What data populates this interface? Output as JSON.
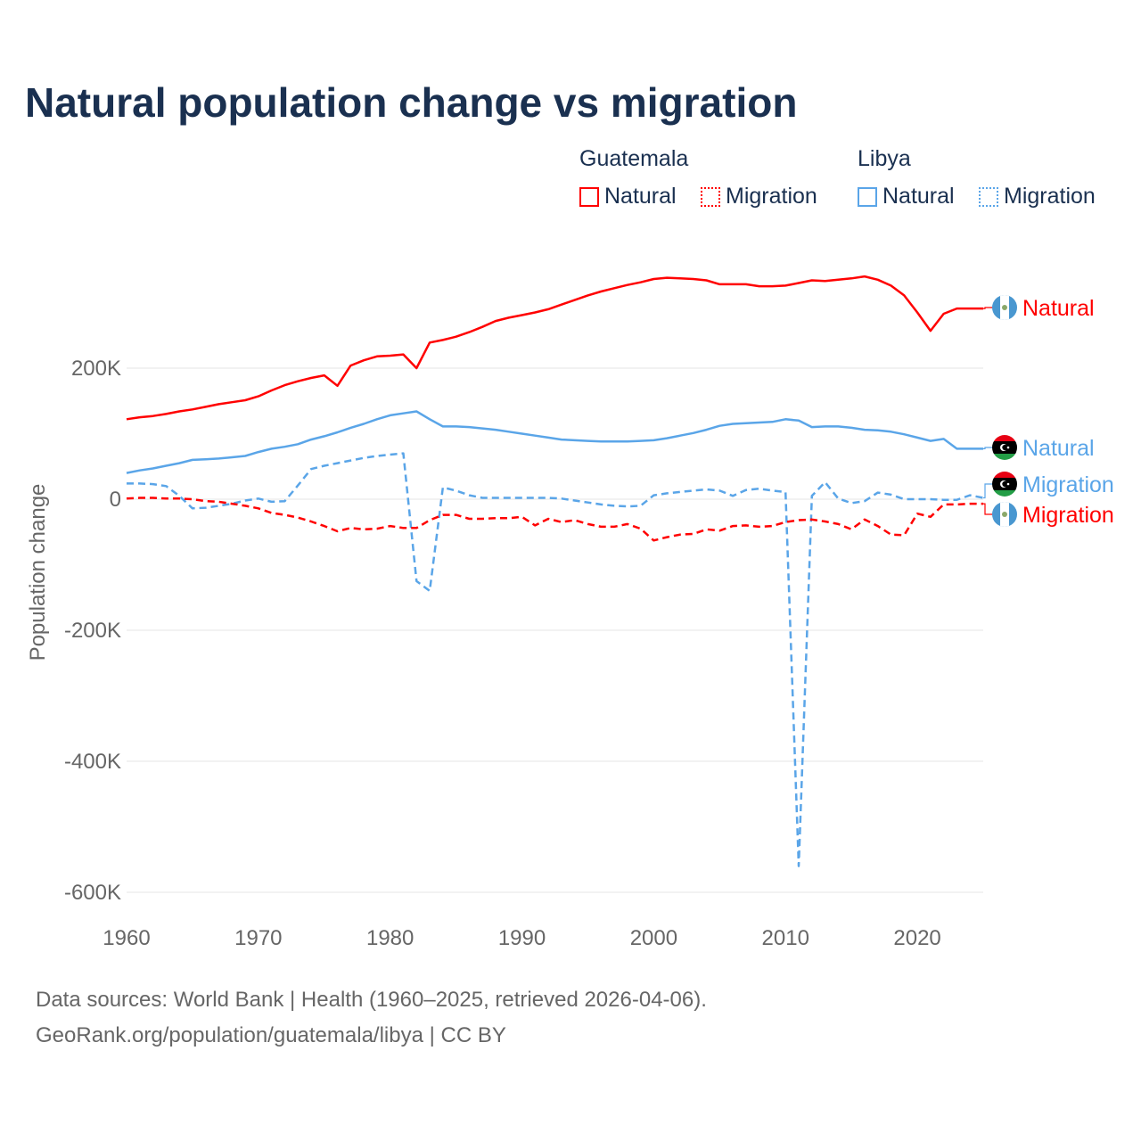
{
  "chart_data": {
    "type": "line",
    "title": "Natural population change vs migration",
    "xlabel": "",
    "ylabel": "Population change",
    "xlim": [
      1960,
      2025
    ],
    "ylim": [
      -600000,
      400000
    ],
    "yticks": [
      {
        "v": 200000,
        "label": "200K"
      },
      {
        "v": 0,
        "label": "0"
      },
      {
        "v": -200000,
        "label": "-200K"
      },
      {
        "v": -400000,
        "label": "-400K"
      },
      {
        "v": -600000,
        "label": "-600K"
      }
    ],
    "xticks": [
      1960,
      1970,
      1980,
      1990,
      2000,
      2010,
      2020
    ],
    "grid": true,
    "legend_position": "top-right",
    "legend_groups": [
      {
        "country": "Guatemala",
        "items": [
          "Natural",
          "Migration"
        ],
        "color": "#ff0000"
      },
      {
        "country": "Libya",
        "items": [
          "Natural",
          "Migration"
        ],
        "color": "#5aa5e8"
      }
    ],
    "start_year": 1960,
    "series": [
      {
        "name": "Guatemala Natural",
        "label": "Natural",
        "country": "Guatemala",
        "color": "#ff0000",
        "dash": false,
        "unit": "K",
        "values": [
          122,
          125,
          127,
          130,
          134,
          137,
          141,
          145,
          148,
          151,
          157,
          166,
          174,
          180,
          185,
          189,
          173,
          204,
          212,
          218,
          219,
          221,
          200,
          239,
          243,
          248,
          255,
          263,
          272,
          277,
          281,
          285,
          290,
          297,
          304,
          311,
          317,
          322,
          327,
          331,
          336,
          338,
          337,
          336,
          334,
          328,
          328,
          328,
          325,
          325,
          326,
          330,
          334,
          333,
          335,
          337,
          340,
          335,
          326,
          311,
          285,
          257,
          283,
          291,
          291,
          291
        ]
      },
      {
        "name": "Libya Natural",
        "label": "Natural",
        "country": "Libya",
        "color": "#5aa5e8",
        "dash": false,
        "unit": "K",
        "values": [
          40,
          44,
          47,
          51,
          55,
          60,
          61,
          62,
          64,
          66,
          72,
          77,
          80,
          84,
          91,
          96,
          102,
          109,
          115,
          122,
          128,
          131,
          134,
          122,
          111,
          111,
          110,
          108,
          106,
          103,
          100,
          97,
          94,
          91,
          90,
          89,
          88,
          88,
          88,
          89,
          90,
          93,
          97,
          101,
          106,
          112,
          115,
          116,
          117,
          118,
          122,
          120,
          110,
          111,
          111,
          109,
          106,
          105,
          103,
          99,
          94,
          89,
          92,
          77,
          77,
          77
        ]
      },
      {
        "name": "Libya Migration",
        "label": "Migration",
        "country": "Libya",
        "color": "#5aa5e8",
        "dash": true,
        "unit": "K",
        "values": [
          24,
          24,
          23,
          20,
          5,
          -14,
          -13,
          -10,
          -7,
          -2,
          1,
          -4,
          -3,
          21,
          46,
          51,
          55,
          59,
          63,
          66,
          68,
          70,
          -125,
          -140,
          18,
          13,
          6,
          2,
          2,
          2,
          2,
          2,
          2,
          1,
          -2,
          -5,
          -8,
          -10,
          -11,
          -10,
          6,
          9,
          11,
          13,
          15,
          13,
          5,
          14,
          16,
          13,
          11,
          -560,
          5,
          26,
          1,
          -6,
          -3,
          10,
          7,
          0,
          0,
          0,
          -1,
          -1,
          6,
          2
        ]
      },
      {
        "name": "Guatemala Migration",
        "label": "Migration",
        "country": "Guatemala",
        "color": "#ff0000",
        "dash": true,
        "unit": "K",
        "values": [
          1,
          2,
          2,
          1,
          1,
          0,
          -3,
          -4,
          -7,
          -10,
          -14,
          -21,
          -24,
          -28,
          -34,
          -41,
          -49,
          -44,
          -46,
          -45,
          -41,
          -44,
          -44,
          -32,
          -24,
          -24,
          -30,
          -30,
          -29,
          -29,
          -27,
          -40,
          -30,
          -35,
          -32,
          -38,
          -42,
          -42,
          -38,
          -45,
          -63,
          -58,
          -54,
          -53,
          -46,
          -48,
          -41,
          -40,
          -42,
          -41,
          -35,
          -32,
          -31,
          -34,
          -38,
          -46,
          -31,
          -41,
          -54,
          -55,
          -22,
          -27,
          -8,
          -8,
          -7,
          -7
        ]
      }
    ]
  },
  "footer": {
    "line1": "Data sources: World Bank | Health (1960–2025, retrieved 2026-04-06).",
    "line2": "GeoRank.org/population/guatemala/libya | CC BY"
  }
}
